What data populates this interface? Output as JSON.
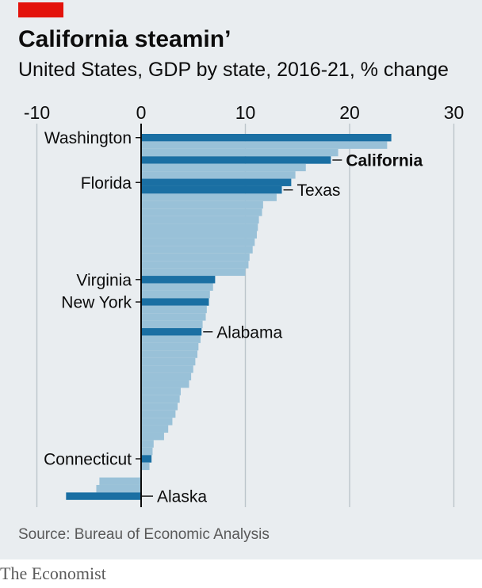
{
  "header": {
    "title": "California steamin’",
    "subtitle": "United States, GDP by state, 2016-21, % change"
  },
  "footer": {
    "source": "Source: Bureau of Economic Analysis",
    "brand": "The Economist"
  },
  "colors": {
    "highlight": "#1a6fa3",
    "bar": "#99c1d8",
    "background": "#e9edf0",
    "accent": "#e3120b"
  },
  "chart_data": {
    "type": "bar",
    "orientation": "horizontal",
    "xlim": [
      -10,
      30
    ],
    "xticks": [
      -10,
      0,
      10,
      20,
      30
    ],
    "grid": true,
    "values": [
      24.0,
      23.6,
      18.9,
      18.2,
      15.8,
      14.8,
      14.4,
      13.5,
      13.0,
      11.7,
      11.6,
      11.3,
      11.2,
      11.1,
      10.9,
      10.7,
      10.4,
      10.3,
      10.0,
      7.1,
      6.9,
      6.6,
      6.5,
      6.3,
      6.2,
      5.9,
      5.8,
      5.7,
      5.5,
      5.4,
      5.2,
      5.0,
      4.8,
      4.6,
      3.8,
      3.7,
      3.5,
      3.3,
      3.0,
      2.6,
      2.2,
      1.2,
      1.1,
      1.0,
      0.8,
      -0.1,
      -4.0,
      -4.3,
      -7.2
    ],
    "highlighted": [
      {
        "index": 0,
        "label": "Washington",
        "side": "left"
      },
      {
        "index": 3,
        "label": "California",
        "side": "right",
        "bold": true
      },
      {
        "index": 6,
        "label": "Florida",
        "side": "left"
      },
      {
        "index": 7,
        "label": "Texas",
        "side": "right"
      },
      {
        "index": 19,
        "label": "Virginia",
        "side": "left"
      },
      {
        "index": 22,
        "label": "New York",
        "side": "left"
      },
      {
        "index": 26,
        "label": "Alabama",
        "side": "right"
      },
      {
        "index": 43,
        "label": "Connecticut",
        "side": "left"
      },
      {
        "index": 48,
        "label": "Alaska",
        "side": "right"
      }
    ]
  }
}
